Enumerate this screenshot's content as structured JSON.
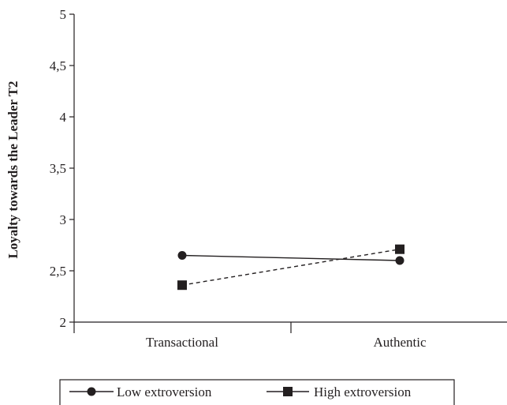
{
  "chart_data": {
    "type": "line",
    "title": "",
    "xlabel": "",
    "ylabel": "Loyalty towards the Leader T2",
    "categories": [
      "Transactional",
      "Authentic"
    ],
    "ylim": [
      2,
      5
    ],
    "yticks": [
      "2",
      "2,5",
      "3",
      "3,5",
      "4",
      "4,5",
      "5"
    ],
    "ytick_values": [
      2,
      2.5,
      3,
      3.5,
      4,
      4.5,
      5
    ],
    "series": [
      {
        "name": "Low extroversion",
        "values": [
          2.65,
          2.6
        ],
        "marker": "circle",
        "line_style": "solid",
        "color": "#231f20"
      },
      {
        "name": "High extroversion",
        "values": [
          2.36,
          2.71
        ],
        "marker": "square",
        "line_style": "dashed",
        "color": "#231f20"
      }
    ],
    "grid": false,
    "legend_position": "bottom"
  }
}
